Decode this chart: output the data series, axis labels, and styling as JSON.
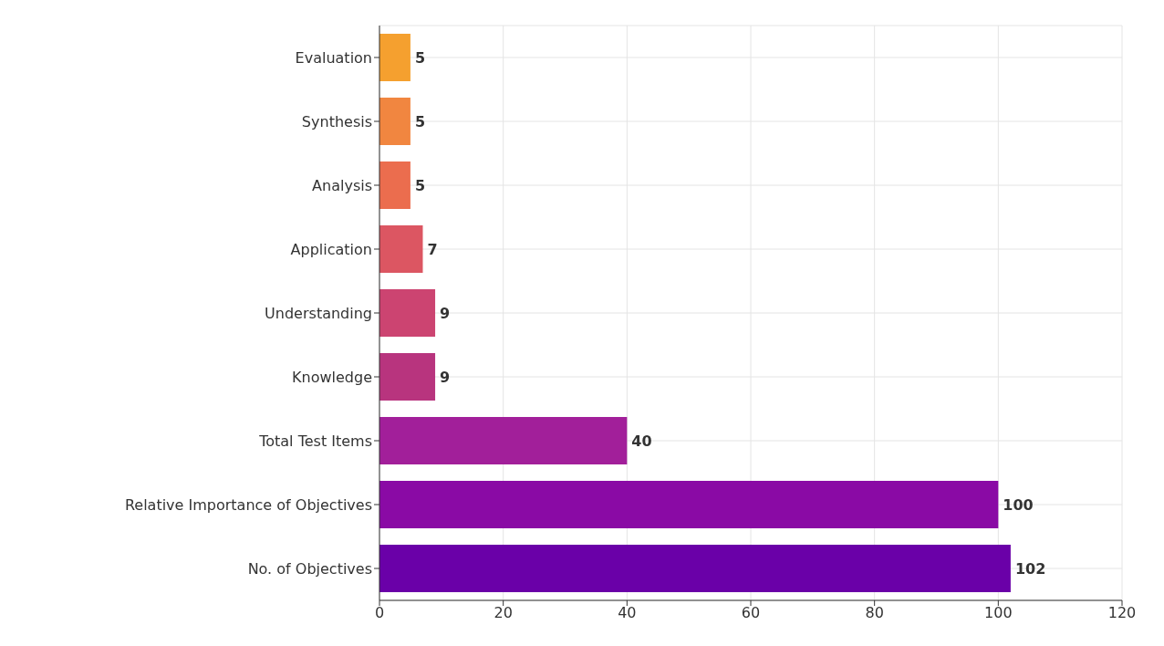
{
  "chart_data": {
    "type": "bar",
    "orientation": "horizontal",
    "categories": [
      "Evaluation",
      "Synthesis",
      "Analysis",
      "Application",
      "Understanding",
      "Knowledge",
      "Total Test Items",
      "Relative Importance of Objectives",
      "No. of Objectives"
    ],
    "values": [
      5,
      5,
      5,
      7,
      9,
      9,
      40,
      100,
      102
    ],
    "colors": [
      "#f5a02f",
      "#f18640",
      "#eb6d4e",
      "#dc5662",
      "#cc4471",
      "#b8347e",
      "#a21f9a",
      "#8a0aa5",
      "#6a00a8"
    ],
    "xlim": [
      0,
      120
    ],
    "xticks": [
      0,
      20,
      40,
      60,
      80,
      100,
      120
    ],
    "grid": true,
    "data_labels": true
  }
}
